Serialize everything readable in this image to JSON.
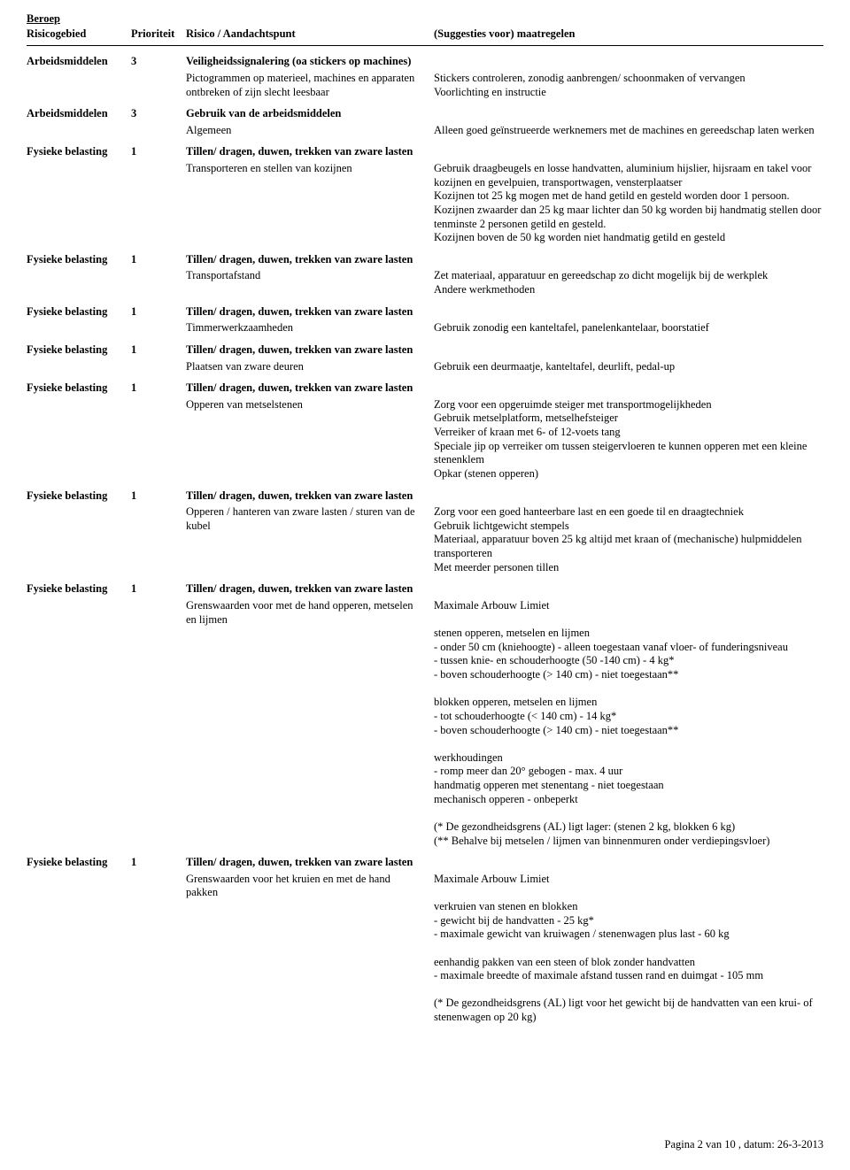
{
  "title": "Beroep",
  "columns": {
    "c1": "Risicogebied",
    "c2": "Prioriteit",
    "c3": "Risico / Aandachtspunt",
    "c4": "(Suggesties voor) maatregelen"
  },
  "groups": [
    {
      "area": "Arbeidsmiddelen",
      "prio": "3",
      "risk": "Veiligheidssignalering (oa stickers op machines)",
      "sub": "Pictogrammen op materieel, machines en apparaten ontbreken of zijn slecht leesbaar",
      "meas": "Stickers controleren, zonodig aanbrengen/ schoonmaken of vervangen\nVoorlichting en instructie"
    },
    {
      "area": "Arbeidsmiddelen",
      "prio": "3",
      "risk": "Gebruik van de arbeidsmiddelen",
      "sub": "Algemeen",
      "meas": "Alleen goed geïnstrueerde werknemers met de machines en gereedschap laten werken"
    },
    {
      "area": "Fysieke belasting",
      "prio": "1",
      "risk": "Tillen/ dragen, duwen, trekken van zware lasten",
      "sub": "Transporteren en stellen van kozijnen",
      "meas": "Gebruik draagbeugels en losse handvatten, aluminium hijslier, hijsraam en takel voor kozijnen en gevelpuien, transportwagen, vensterplaatser\nKozijnen tot 25 kg mogen met de hand getild en gesteld worden door  1 persoon.\nKozijnen zwaarder dan 25 kg maar lichter dan 50 kg worden bij handmatig stellen door tenminste 2 personen getild en gesteld.\nKozijnen boven de 50 kg worden niet handmatig getild en gesteld"
    },
    {
      "area": "Fysieke belasting",
      "prio": "1",
      "risk": "Tillen/ dragen, duwen, trekken van zware lasten",
      "sub": "Transportafstand",
      "meas": "Zet materiaal, apparatuur en gereedschap zo dicht mogelijk bij de werkplek\nAndere werkmethoden"
    },
    {
      "area": "Fysieke belasting",
      "prio": "1",
      "risk": "Tillen/ dragen, duwen, trekken van zware lasten",
      "sub": "Timmerwerkzaamheden",
      "meas": "Gebruik zonodig een kanteltafel, panelenkantelaar, boorstatief"
    },
    {
      "area": "Fysieke belasting",
      "prio": "1",
      "risk": "Tillen/ dragen, duwen, trekken van zware lasten",
      "sub": "Plaatsen van zware deuren",
      "meas": "Gebruik een deurmaatje, kanteltafel, deurlift, pedal-up"
    },
    {
      "area": "Fysieke belasting",
      "prio": "1",
      "risk": "Tillen/ dragen, duwen, trekken van zware lasten",
      "sub": "Opperen van metselstenen",
      "meas": "Zorg voor een opgeruimde steiger met transportmogelijkheden\nGebruik metselplatform, metselhefsteiger\nVerreiker of kraan met 6- of 12-voets tang\nSpeciale jip op verreiker om tussen steigervloeren te kunnen opperen met een kleine stenenklem\nOpkar (stenen opperen)"
    },
    {
      "area": "Fysieke belasting",
      "prio": "1",
      "risk": "Tillen/ dragen, duwen, trekken van zware lasten",
      "sub": "Opperen / hanteren van zware lasten / sturen van de kubel",
      "meas": "Zorg voor een goed hanteerbare last en een goede til en draagtechniek\nGebruik lichtgewicht stempels\nMateriaal, apparatuur boven 25 kg altijd met kraan of (mechanische) hulpmiddelen transporteren\nMet meerder personen tillen"
    },
    {
      "area": "Fysieke belasting",
      "prio": "1",
      "risk": "Tillen/ dragen, duwen, trekken van zware lasten",
      "sub": "Grenswaarden voor met de hand opperen, metselen en lijmen",
      "meas": "Maximale Arbouw Limiet\n\nstenen opperen, metselen en lijmen\n- onder 50 cm (kniehoogte) - alleen toegestaan vanaf vloer- of funderingsniveau\n- tussen knie- en schouderhoogte (50 -140 cm) - 4 kg*\n- boven schouderhoogte (> 140 cm) - niet toegestaan**\n\nblokken opperen, metselen en lijmen\n- tot  schouderhoogte (< 140 cm) - 14 kg*\n- boven schouderhoogte (> 140 cm) - niet toegestaan**\n\nwerkhoudingen\n- romp meer dan 20° gebogen - max. 4 uur\nhandmatig opperen met stenentang - niet toegestaan\nmechanisch opperen - onbeperkt\n\n(*  De gezondheidsgrens (AL) ligt lager: (stenen 2 kg, blokken 6 kg)\n(** Behalve bij metselen / lijmen van binnenmuren onder verdiepingsvloer)"
    },
    {
      "area": "Fysieke belasting",
      "prio": "1",
      "risk": "Tillen/ dragen, duwen, trekken van zware lasten",
      "sub": "Grenswaarden voor het kruien en met de hand pakken",
      "meas": "Maximale Arbouw Limiet\n\nverkruien van stenen en blokken\n- gewicht bij de handvatten - 25 kg*\n- maximale gewicht van kruiwagen / stenenwagen plus last - 60 kg\n\neenhandig pakken van een steen of blok zonder handvatten\n- maximale breedte of maximale afstand tussen rand en duimgat - 105 mm\n\n(* De gezondheidsgrens (AL) ligt voor het gewicht bij de handvatten van een krui- of stenenwagen op 20 kg)"
    }
  ],
  "footer": "Pagina 2 van 10 , datum: 26-3-2013"
}
